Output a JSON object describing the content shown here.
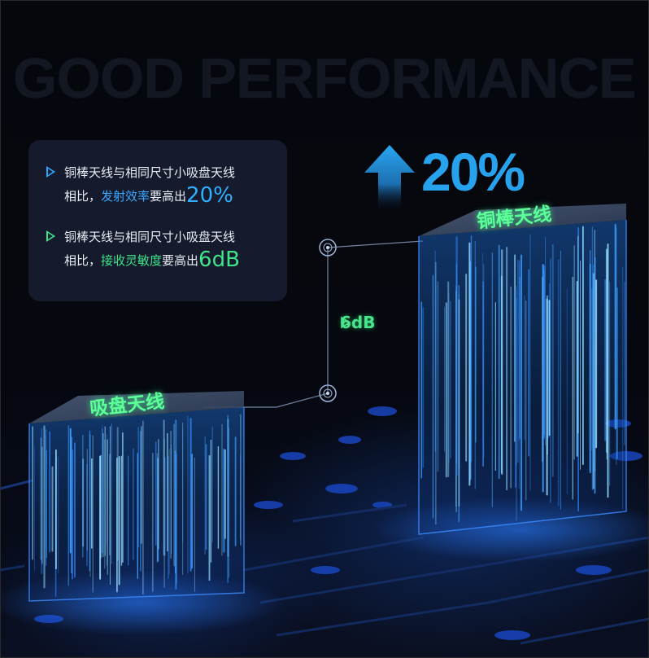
{
  "background_word": "GOOD PERFORMANCE",
  "points": [
    {
      "line1": "铜棒天线与相同尺寸小吸盘天线",
      "prefix": "相比，",
      "highlight": "发射效率",
      "suffix": "要高出",
      "value": "20%",
      "color": "#2fb0ff"
    },
    {
      "line1": "铜棒天线与相同尺寸小吸盘天线",
      "prefix": "相比，",
      "highlight": "接收灵敏度",
      "suffix": "要高出",
      "value": "6dB",
      "color": "#3ee38a"
    }
  ],
  "headline_value": "20%",
  "gap_label": "6dB",
  "block_labels": {
    "left": "吸盘天线",
    "right": "铜棒天线"
  },
  "icons": [
    "arrow-up-icon",
    "triangle-right-icon",
    "target-marker-icon"
  ]
}
